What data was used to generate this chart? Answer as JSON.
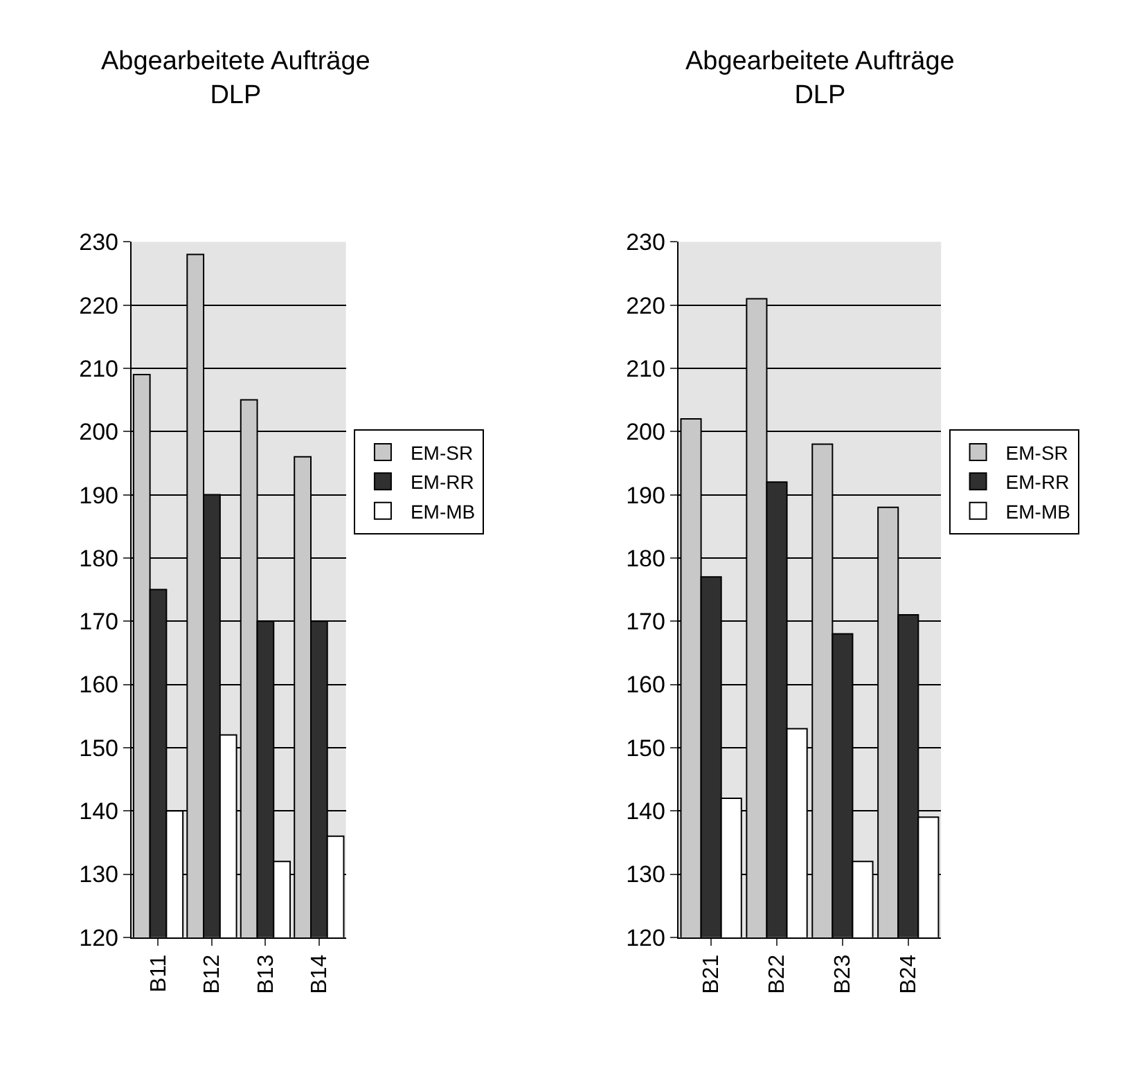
{
  "chart_data": [
    {
      "type": "bar",
      "title": "Abgearbeitete Aufträge\nDLP",
      "categories": [
        "B11",
        "B12",
        "B13",
        "B14"
      ],
      "series": [
        {
          "name": "EM-SR",
          "color": "#c8c8c8",
          "values": [
            209,
            228,
            205,
            196
          ]
        },
        {
          "name": "EM-RR",
          "color": "#303030",
          "values": [
            175,
            190,
            170,
            170
          ]
        },
        {
          "name": "EM-MB",
          "color": "#ffffff",
          "values": [
            140,
            152,
            132,
            136
          ]
        }
      ],
      "ylim": [
        120,
        230
      ],
      "yticks": [
        120,
        130,
        140,
        150,
        160,
        170,
        180,
        190,
        200,
        210,
        220,
        230
      ],
      "grid": "y",
      "legend": "right"
    },
    {
      "type": "bar",
      "title": "Abgearbeitete Aufträge\nDLP",
      "categories": [
        "B21",
        "B22",
        "B23",
        "B24"
      ],
      "series": [
        {
          "name": "EM-SR",
          "color": "#c8c8c8",
          "values": [
            202,
            221,
            198,
            188
          ]
        },
        {
          "name": "EM-RR",
          "color": "#303030",
          "values": [
            177,
            192,
            168,
            171
          ]
        },
        {
          "name": "EM-MB",
          "color": "#ffffff",
          "values": [
            142,
            153,
            132,
            139
          ]
        }
      ],
      "ylim": [
        120,
        230
      ],
      "yticks": [
        120,
        130,
        140,
        150,
        160,
        170,
        180,
        190,
        200,
        210,
        220,
        230
      ],
      "grid": "y",
      "legend": "right"
    }
  ]
}
